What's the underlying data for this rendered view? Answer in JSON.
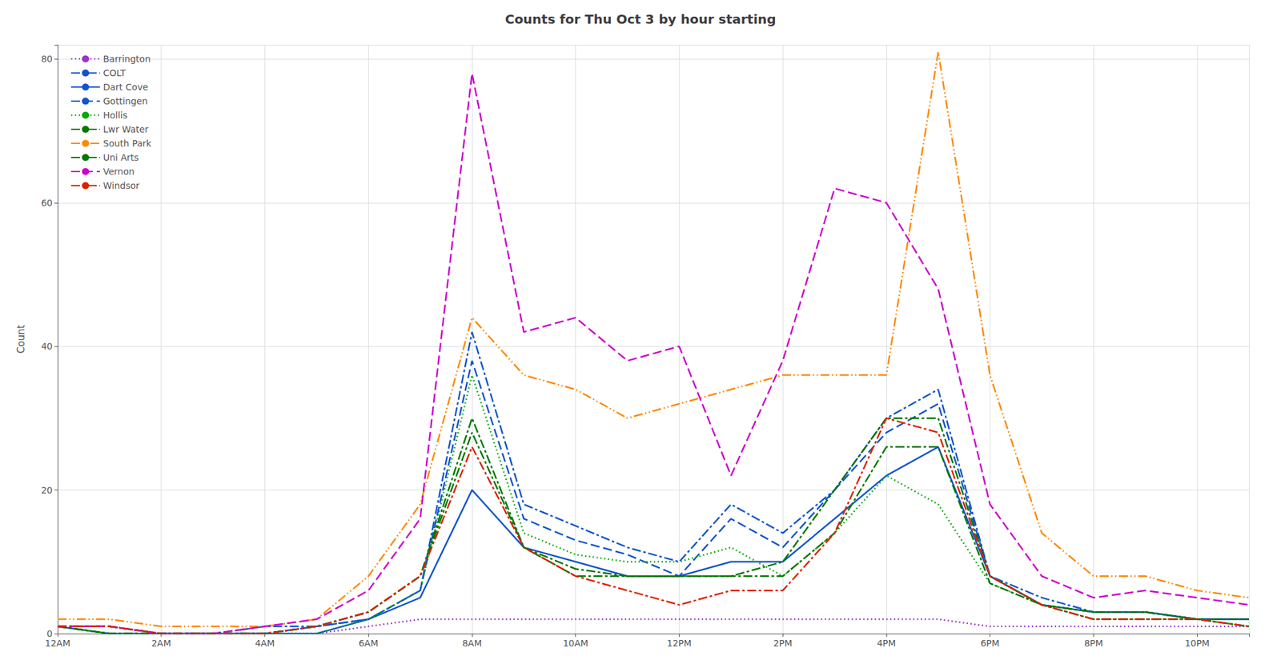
{
  "chart_data": {
    "type": "line",
    "title": "Counts for Thu Oct 3 by hour starting",
    "ylabel": "Count",
    "x": [
      0,
      1,
      2,
      3,
      4,
      5,
      6,
      7,
      8,
      9,
      10,
      11,
      12,
      13,
      14,
      15,
      16,
      17,
      18,
      19,
      20,
      21,
      22,
      23
    ],
    "xlim": [
      0,
      23
    ],
    "xticks": [
      {
        "value": 0,
        "label": "12AM"
      },
      {
        "value": 2,
        "label": "2AM"
      },
      {
        "value": 4,
        "label": "4AM"
      },
      {
        "value": 6,
        "label": "6AM"
      },
      {
        "value": 8,
        "label": "8AM"
      },
      {
        "value": 10,
        "label": "10AM"
      },
      {
        "value": 12,
        "label": "12PM"
      },
      {
        "value": 14,
        "label": "2PM"
      },
      {
        "value": 16,
        "label": "4PM"
      },
      {
        "value": 18,
        "label": "6PM"
      },
      {
        "value": 20,
        "label": "8PM"
      },
      {
        "value": 22,
        "label": "10PM"
      }
    ],
    "ylim": [
      0,
      82
    ],
    "yticks": [
      0,
      20,
      40,
      60,
      80
    ],
    "grid": true,
    "legend": "upper left",
    "series": [
      {
        "name": "Barrington",
        "color": "#9933CC",
        "line_style": "dotted",
        "values": [
          1,
          1,
          0,
          0,
          0,
          0,
          1,
          2,
          2,
          2,
          2,
          2,
          2,
          2,
          2,
          2,
          2,
          2,
          1,
          1,
          1,
          1,
          1,
          1
        ]
      },
      {
        "name": "COLT",
        "color": "#1155CC",
        "line_style": "dashdot",
        "values": [
          1,
          1,
          0,
          0,
          1,
          1,
          2,
          6,
          42,
          18,
          15,
          12,
          10,
          18,
          14,
          20,
          30,
          34,
          8,
          5,
          3,
          3,
          2,
          2
        ]
      },
      {
        "name": "Dart Cove",
        "color": "#1155CC",
        "line_style": "solid",
        "values": [
          1,
          0,
          0,
          0,
          0,
          0,
          2,
          5,
          20,
          12,
          10,
          8,
          8,
          10,
          10,
          16,
          22,
          26,
          8,
          4,
          3,
          3,
          2,
          2
        ]
      },
      {
        "name": "Gottingen",
        "color": "#1155CC",
        "line_style": "dashed",
        "values": [
          1,
          1,
          0,
          0,
          0,
          1,
          2,
          6,
          38,
          16,
          13,
          11,
          8,
          16,
          12,
          20,
          28,
          32,
          8,
          4,
          3,
          3,
          2,
          2
        ]
      },
      {
        "name": "Hollis",
        "color": "#00AA00",
        "line_style": "dotted",
        "values": [
          1,
          0,
          0,
          0,
          0,
          0,
          2,
          6,
          36,
          14,
          11,
          10,
          10,
          12,
          8,
          14,
          22,
          18,
          7,
          4,
          3,
          3,
          2,
          1
        ]
      },
      {
        "name": "Lwr Water",
        "color": "#007700",
        "line_style": "dashdot",
        "values": [
          1,
          0,
          0,
          0,
          0,
          1,
          3,
          8,
          28,
          12,
          8,
          8,
          8,
          8,
          8,
          14,
          26,
          26,
          7,
          4,
          3,
          3,
          2,
          2
        ]
      },
      {
        "name": "South Park",
        "color": "#FF8800",
        "line_style": "dashdotdotted",
        "values": [
          2,
          2,
          1,
          1,
          1,
          2,
          8,
          18,
          44,
          36,
          34,
          30,
          32,
          34,
          36,
          36,
          36,
          81,
          36,
          14,
          8,
          8,
          6,
          5
        ]
      },
      {
        "name": "Uni Arts",
        "color": "#007700",
        "line_style": "dashdot",
        "values": [
          1,
          0,
          0,
          0,
          0,
          1,
          3,
          8,
          30,
          12,
          9,
          8,
          8,
          8,
          10,
          20,
          30,
          30,
          8,
          4,
          2,
          2,
          2,
          1
        ]
      },
      {
        "name": "Vernon",
        "color": "#CC00CC",
        "line_style": "dashed",
        "values": [
          1,
          1,
          0,
          0,
          1,
          2,
          6,
          16,
          78,
          42,
          44,
          38,
          40,
          22,
          38,
          62,
          60,
          48,
          18,
          8,
          5,
          6,
          5,
          4
        ]
      },
      {
        "name": "Windsor",
        "color": "#DD2200",
        "line_style": "dashdot",
        "values": [
          1,
          1,
          0,
          0,
          0,
          1,
          3,
          8,
          26,
          12,
          8,
          6,
          4,
          6,
          6,
          14,
          30,
          28,
          8,
          4,
          2,
          2,
          2,
          1
        ]
      }
    ]
  }
}
